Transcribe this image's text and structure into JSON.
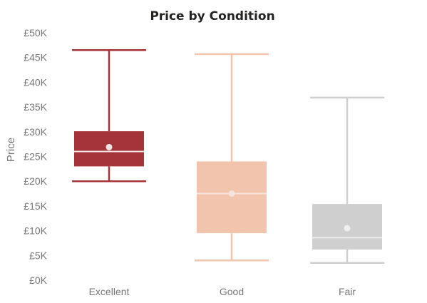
{
  "chart_data": {
    "type": "box",
    "title": "Price by Condition",
    "xlabel": "",
    "ylabel": "Price",
    "ylim": [
      0,
      50000
    ],
    "ytick_values": [
      0,
      5000,
      10000,
      15000,
      20000,
      25000,
      30000,
      35000,
      40000,
      45000,
      50000
    ],
    "ytick_labels": [
      "£0K",
      "£5K",
      "£10K",
      "£15K",
      "£20K",
      "£25K",
      "£30K",
      "£35K",
      "£40K",
      "£45K",
      "£50K"
    ],
    "categories": [
      "Excellent",
      "Good",
      "Fair"
    ],
    "boxes": [
      {
        "category": "Excellent",
        "min": 20000,
        "q1": 23000,
        "median": 26000,
        "q3": 30100,
        "max": 46500,
        "mean": 26900,
        "color": "#a4343a",
        "whisker_color": "#a4343a",
        "mean_color": "#f3e4e4"
      },
      {
        "category": "Good",
        "min": 4000,
        "q1": 9500,
        "median": 17500,
        "q3": 24000,
        "max": 45700,
        "mean": 17500,
        "color": "#f2c4ae",
        "whisker_color": "#f2c4ae",
        "mean_color": "#f6e4dc"
      },
      {
        "category": "Fair",
        "min": 3500,
        "q1": 6200,
        "median": 8600,
        "q3": 15400,
        "max": 36900,
        "mean": 10500,
        "color": "#cfcfcf",
        "whisker_color": "#cfcfcf",
        "mean_color": "#eeeeee"
      }
    ],
    "grid": false,
    "legend": "none"
  }
}
